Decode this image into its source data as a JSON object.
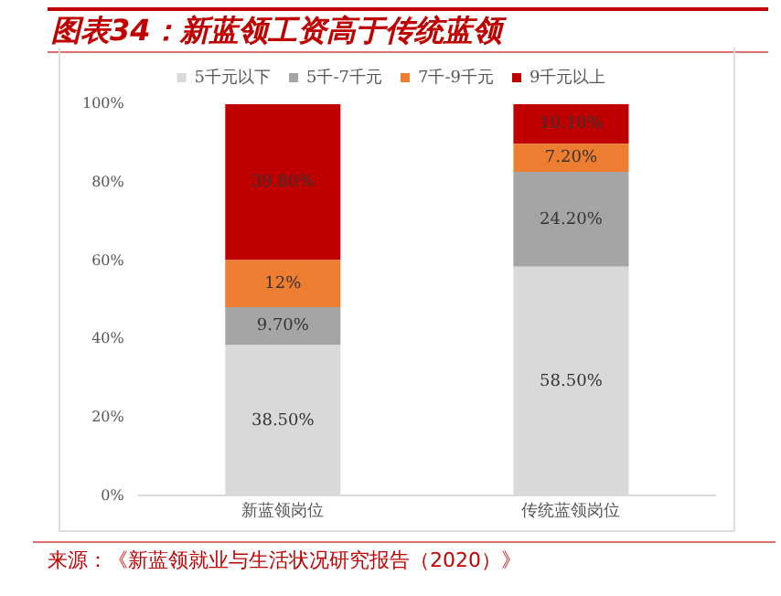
{
  "chart_data": {
    "type": "bar",
    "title": "图表34：新蓝领工资高于传统蓝领",
    "stacked": true,
    "categories": [
      "新蓝领岗位",
      "传统蓝领岗位"
    ],
    "series": [
      {
        "name": "5千元以下",
        "color": "#d9d9d9",
        "values": [
          38.5,
          58.5
        ],
        "value_labels": [
          "38.50%",
          "58.50%"
        ]
      },
      {
        "name": "5千-7千元",
        "color": "#a5a5a5",
        "values": [
          9.7,
          24.2
        ],
        "value_labels": [
          "9.70%",
          "24.20%"
        ]
      },
      {
        "name": "7千-9千元",
        "color": "#ed7d31",
        "values": [
          12,
          7.2
        ],
        "value_labels": [
          "12%",
          "7.20%"
        ]
      },
      {
        "name": "9千元以上",
        "color": "#c00000",
        "values": [
          39.8,
          10.1
        ],
        "value_labels": [
          "39.80%",
          "10.10%"
        ]
      }
    ],
    "ylim": [
      0,
      100
    ],
    "yticks": [
      {
        "value": 0,
        "label": "0%"
      },
      {
        "value": 20,
        "label": "20%"
      },
      {
        "value": 40,
        "label": "40%"
      },
      {
        "value": 60,
        "label": "60%"
      },
      {
        "value": 80,
        "label": "80%"
      },
      {
        "value": 100,
        "label": "100%"
      }
    ],
    "grid": false,
    "legend": "top",
    "annotations": [
      "来源：《新蓝领就业与生活状况研究报告（2020）》"
    ]
  }
}
